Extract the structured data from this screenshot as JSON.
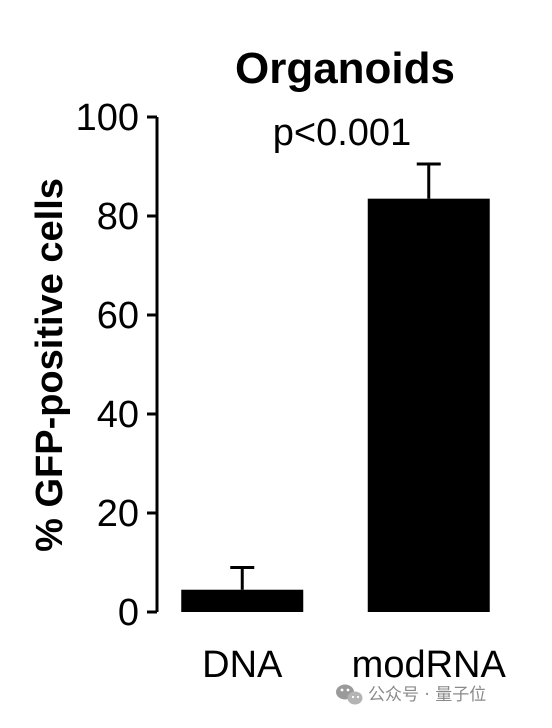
{
  "chart_data": {
    "type": "bar",
    "title": "Organoids",
    "ylabel": "% GFP-positive cells",
    "xlabel": "",
    "categories": [
      "DNA",
      "modRNA"
    ],
    "values": [
      4.5,
      83.5
    ],
    "error_upper": [
      9,
      90.5
    ],
    "ylim": [
      0,
      100
    ],
    "yticks": [
      0,
      20,
      40,
      60,
      80,
      100
    ],
    "annotation": "p<0.001",
    "bar_color": "#000000",
    "grid": false
  },
  "watermark": {
    "text": "公众号 · 量子位",
    "icon": "wechat-icon"
  }
}
